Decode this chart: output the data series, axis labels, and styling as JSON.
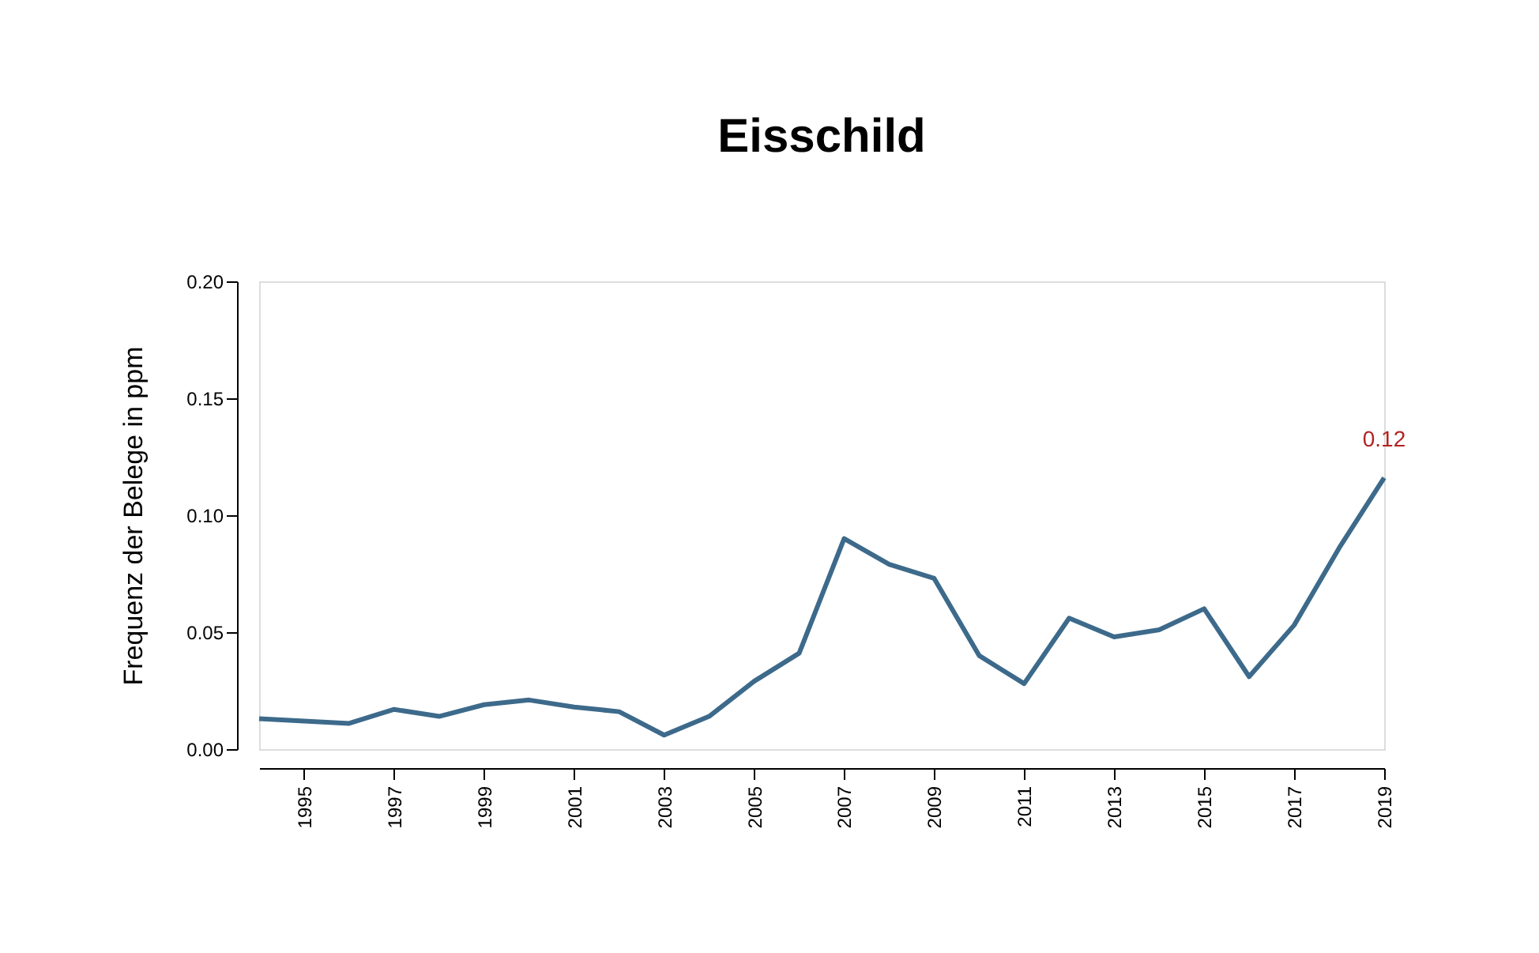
{
  "chart_data": {
    "type": "line",
    "title": "Eisschild",
    "ylabel": "Frequenz der Belege in ppm",
    "x": [
      1994,
      1995,
      1996,
      1997,
      1998,
      1999,
      2000,
      2001,
      2002,
      2003,
      2004,
      2005,
      2006,
      2007,
      2008,
      2009,
      2010,
      2011,
      2012,
      2013,
      2014,
      2015,
      2016,
      2017,
      2018,
      2019
    ],
    "series": [
      {
        "color": "#3d6a8b",
        "values": [
          0.013,
          0.012,
          0.011,
          0.017,
          0.014,
          0.019,
          0.021,
          0.018,
          0.016,
          0.006,
          0.014,
          0.029,
          0.041,
          0.09,
          0.079,
          0.073,
          0.04,
          0.028,
          0.056,
          0.048,
          0.051,
          0.06,
          0.031,
          0.053,
          0.086,
          0.116
        ]
      }
    ],
    "xlim": [
      1994,
      2019
    ],
    "xticks": [
      1995,
      1997,
      1999,
      2001,
      2003,
      2005,
      2007,
      2009,
      2011,
      2013,
      2015,
      2017,
      2019
    ],
    "ylim": [
      0,
      0.2
    ],
    "yticks": [
      {
        "value": 0,
        "label": "0.00"
      },
      0.05,
      {
        "value": 0.1,
        "label": "0.10"
      },
      0.15,
      {
        "value": 0.2,
        "label": "0.20"
      }
    ],
    "annotations": [
      {
        "text": "0.12",
        "x": 2019,
        "y": 0.116
      }
    ],
    "grid": false,
    "marker": "none",
    "line_style": "solid"
  }
}
